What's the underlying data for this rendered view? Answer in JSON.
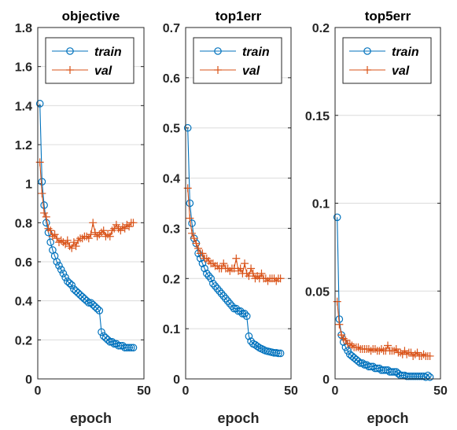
{
  "colors": {
    "train": "#0072BD",
    "val": "#D95319",
    "axis": "#262626",
    "grid": "#dcdcdc",
    "background": "#ffffff"
  },
  "chart_data": [
    {
      "type": "line",
      "title": "objective",
      "xlabel": "epoch",
      "ylabel": "",
      "xlim": [
        0,
        50
      ],
      "ylim": [
        0,
        1.8
      ],
      "xticks": [
        0,
        50
      ],
      "yticks": [
        0,
        0.2,
        0.4,
        0.6,
        0.8,
        1,
        1.2,
        1.4,
        1.6,
        1.8
      ],
      "ytick_labels": [
        "0",
        "0.2",
        "0.4",
        "0.6",
        "0.8",
        "1",
        "1.2",
        "1.4",
        "1.6",
        "1.8"
      ],
      "grid": "y",
      "legend": "top",
      "x": [
        1,
        2,
        3,
        4,
        5,
        6,
        7,
        8,
        9,
        10,
        11,
        12,
        13,
        14,
        15,
        16,
        17,
        18,
        19,
        20,
        21,
        22,
        23,
        24,
        25,
        26,
        27,
        28,
        29,
        30,
        31,
        32,
        33,
        34,
        35,
        36,
        37,
        38,
        39,
        40,
        41,
        42,
        43,
        44,
        45
      ],
      "series": [
        {
          "name": "train",
          "marker": "circle",
          "values": [
            1.41,
            1.01,
            0.89,
            0.8,
            0.75,
            0.7,
            0.66,
            0.63,
            0.6,
            0.58,
            0.56,
            0.54,
            0.52,
            0.5,
            0.49,
            0.48,
            0.46,
            0.45,
            0.44,
            0.43,
            0.42,
            0.41,
            0.4,
            0.39,
            0.39,
            0.38,
            0.37,
            0.36,
            0.35,
            0.24,
            0.22,
            0.21,
            0.2,
            0.19,
            0.19,
            0.18,
            0.18,
            0.17,
            0.17,
            0.17,
            0.16,
            0.16,
            0.16,
            0.16,
            0.16
          ]
        },
        {
          "name": "val",
          "marker": "plus",
          "values": [
            1.11,
            0.95,
            0.85,
            0.83,
            0.77,
            0.76,
            0.73,
            0.74,
            0.72,
            0.7,
            0.71,
            0.7,
            0.69,
            0.71,
            0.68,
            0.67,
            0.7,
            0.68,
            0.71,
            0.72,
            0.72,
            0.73,
            0.73,
            0.72,
            0.74,
            0.8,
            0.75,
            0.73,
            0.74,
            0.75,
            0.76,
            0.73,
            0.74,
            0.73,
            0.76,
            0.77,
            0.79,
            0.77,
            0.76,
            0.78,
            0.77,
            0.79,
            0.78,
            0.8,
            0.8
          ]
        }
      ]
    },
    {
      "type": "line",
      "title": "top1err",
      "xlabel": "epoch",
      "ylabel": "",
      "xlim": [
        0,
        50
      ],
      "ylim": [
        0,
        0.7
      ],
      "xticks": [
        0,
        50
      ],
      "yticks": [
        0,
        0.1,
        0.2,
        0.3,
        0.4,
        0.5,
        0.6,
        0.7
      ],
      "ytick_labels": [
        "0",
        "0.1",
        "0.2",
        "0.3",
        "0.4",
        "0.5",
        "0.6",
        "0.7"
      ],
      "grid": "y",
      "legend": "top",
      "x": [
        1,
        2,
        3,
        4,
        5,
        6,
        7,
        8,
        9,
        10,
        11,
        12,
        13,
        14,
        15,
        16,
        17,
        18,
        19,
        20,
        21,
        22,
        23,
        24,
        25,
        26,
        27,
        28,
        29,
        30,
        31,
        32,
        33,
        34,
        35,
        36,
        37,
        38,
        39,
        40,
        41,
        42,
        43,
        44,
        45
      ],
      "series": [
        {
          "name": "train",
          "marker": "circle",
          "values": [
            0.5,
            0.35,
            0.31,
            0.28,
            0.27,
            0.25,
            0.24,
            0.23,
            0.22,
            0.21,
            0.205,
            0.2,
            0.19,
            0.185,
            0.18,
            0.175,
            0.17,
            0.165,
            0.16,
            0.155,
            0.15,
            0.145,
            0.14,
            0.14,
            0.135,
            0.135,
            0.13,
            0.13,
            0.125,
            0.085,
            0.075,
            0.07,
            0.068,
            0.065,
            0.062,
            0.06,
            0.058,
            0.056,
            0.055,
            0.054,
            0.053,
            0.052,
            0.052,
            0.051,
            0.051
          ]
        },
        {
          "name": "val",
          "marker": "plus",
          "values": [
            0.38,
            0.32,
            0.29,
            0.28,
            0.27,
            0.26,
            0.25,
            0.25,
            0.24,
            0.24,
            0.235,
            0.23,
            0.23,
            0.225,
            0.225,
            0.22,
            0.22,
            0.23,
            0.22,
            0.22,
            0.215,
            0.22,
            0.22,
            0.24,
            0.215,
            0.22,
            0.21,
            0.23,
            0.21,
            0.205,
            0.22,
            0.21,
            0.2,
            0.205,
            0.2,
            0.21,
            0.2,
            0.2,
            0.195,
            0.2,
            0.2,
            0.2,
            0.195,
            0.2,
            0.2
          ]
        }
      ]
    },
    {
      "type": "line",
      "title": "top5err",
      "xlabel": "epoch",
      "ylabel": "",
      "xlim": [
        0,
        50
      ],
      "ylim": [
        0,
        0.2
      ],
      "xticks": [
        0,
        50
      ],
      "yticks": [
        0,
        0.05,
        0.1,
        0.15,
        0.2
      ],
      "ytick_labels": [
        "0",
        "0.05",
        "0.1",
        "0.15",
        "0.2"
      ],
      "grid": "y",
      "legend": "top",
      "x": [
        1,
        2,
        3,
        4,
        5,
        6,
        7,
        8,
        9,
        10,
        11,
        12,
        13,
        14,
        15,
        16,
        17,
        18,
        19,
        20,
        21,
        22,
        23,
        24,
        25,
        26,
        27,
        28,
        29,
        30,
        31,
        32,
        33,
        34,
        35,
        36,
        37,
        38,
        39,
        40,
        41,
        42,
        43,
        44,
        45
      ],
      "series": [
        {
          "name": "train",
          "marker": "circle",
          "values": [
            0.092,
            0.034,
            0.025,
            0.021,
            0.018,
            0.016,
            0.014,
            0.013,
            0.012,
            0.011,
            0.01,
            0.009,
            0.009,
            0.008,
            0.008,
            0.007,
            0.007,
            0.007,
            0.006,
            0.006,
            0.006,
            0.005,
            0.005,
            0.005,
            0.005,
            0.004,
            0.004,
            0.004,
            0.004,
            0.003,
            0.002,
            0.002,
            0.002,
            0.0015,
            0.0015,
            0.0015,
            0.0015,
            0.0015,
            0.0015,
            0.0015,
            0.0015,
            0.0015,
            0.001,
            0.002,
            0.001
          ]
        },
        {
          "name": "val",
          "marker": "plus",
          "values": [
            0.044,
            0.031,
            0.025,
            0.023,
            0.022,
            0.02,
            0.02,
            0.019,
            0.018,
            0.018,
            0.018,
            0.017,
            0.017,
            0.017,
            0.017,
            0.017,
            0.016,
            0.017,
            0.017,
            0.016,
            0.016,
            0.017,
            0.016,
            0.016,
            0.019,
            0.016,
            0.016,
            0.016,
            0.017,
            0.015,
            0.015,
            0.014,
            0.016,
            0.014,
            0.015,
            0.015,
            0.013,
            0.014,
            0.015,
            0.013,
            0.013,
            0.014,
            0.013,
            0.013,
            0.013
          ]
        }
      ]
    }
  ]
}
